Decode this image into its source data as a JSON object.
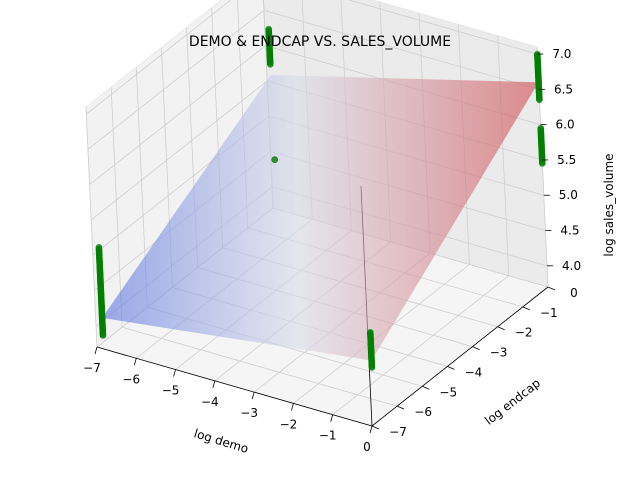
{
  "chart_data": {
    "type": "scatter",
    "title": "DEMO & ENDCAP VS. SALES_VOLUME",
    "xlabel": "log demo",
    "ylabel": "log endcap",
    "zlabel": "log sales_volume",
    "x_ticks": [
      "−7",
      "−6",
      "−5",
      "−4",
      "−3",
      "−2",
      "−1",
      "0"
    ],
    "y_ticks": [
      "−7",
      "−6",
      "−5",
      "−4",
      "−3",
      "−2",
      "−1",
      "0"
    ],
    "z_ticks": [
      "4.0",
      "4.5",
      "5.0",
      "5.5",
      "6.0",
      "6.5",
      "7.0"
    ],
    "xlim": [
      -7,
      0
    ],
    "ylim": [
      -7,
      0
    ],
    "zlim": [
      3.7,
      7.1
    ],
    "grid": true,
    "point_color": "#008000",
    "surface_colormap": "coolwarm",
    "surface": {
      "type": "fitted plane",
      "corners": [
        {
          "x": -6.9,
          "y": -6.9,
          "z": 4.1
        },
        {
          "x": 0,
          "y": -6.9,
          "z": 4.6
        },
        {
          "x": 0,
          "y": 0,
          "z": 6.6
        },
        {
          "x": -6.9,
          "y": 0,
          "z": 5.6
        }
      ]
    },
    "series": [
      {
        "x": -6.9,
        "y": -6.9,
        "z_range": [
          3.85,
          5.1
        ]
      },
      {
        "x": -6.9,
        "y": 0,
        "z_range": [
          5.75,
          6.25
        ]
      },
      {
        "x": -6.9,
        "y": 0,
        "z_range": [
          4.4,
          4.4
        ]
      },
      {
        "x": 0,
        "y": -6.9,
        "z_range": [
          4.5,
          5.0
        ]
      },
      {
        "x": 0,
        "y": 0,
        "z_range": [
          6.35,
          7.0
        ]
      },
      {
        "x": 0,
        "y": 0,
        "z_range": [
          5.45,
          5.95
        ]
      }
    ]
  }
}
